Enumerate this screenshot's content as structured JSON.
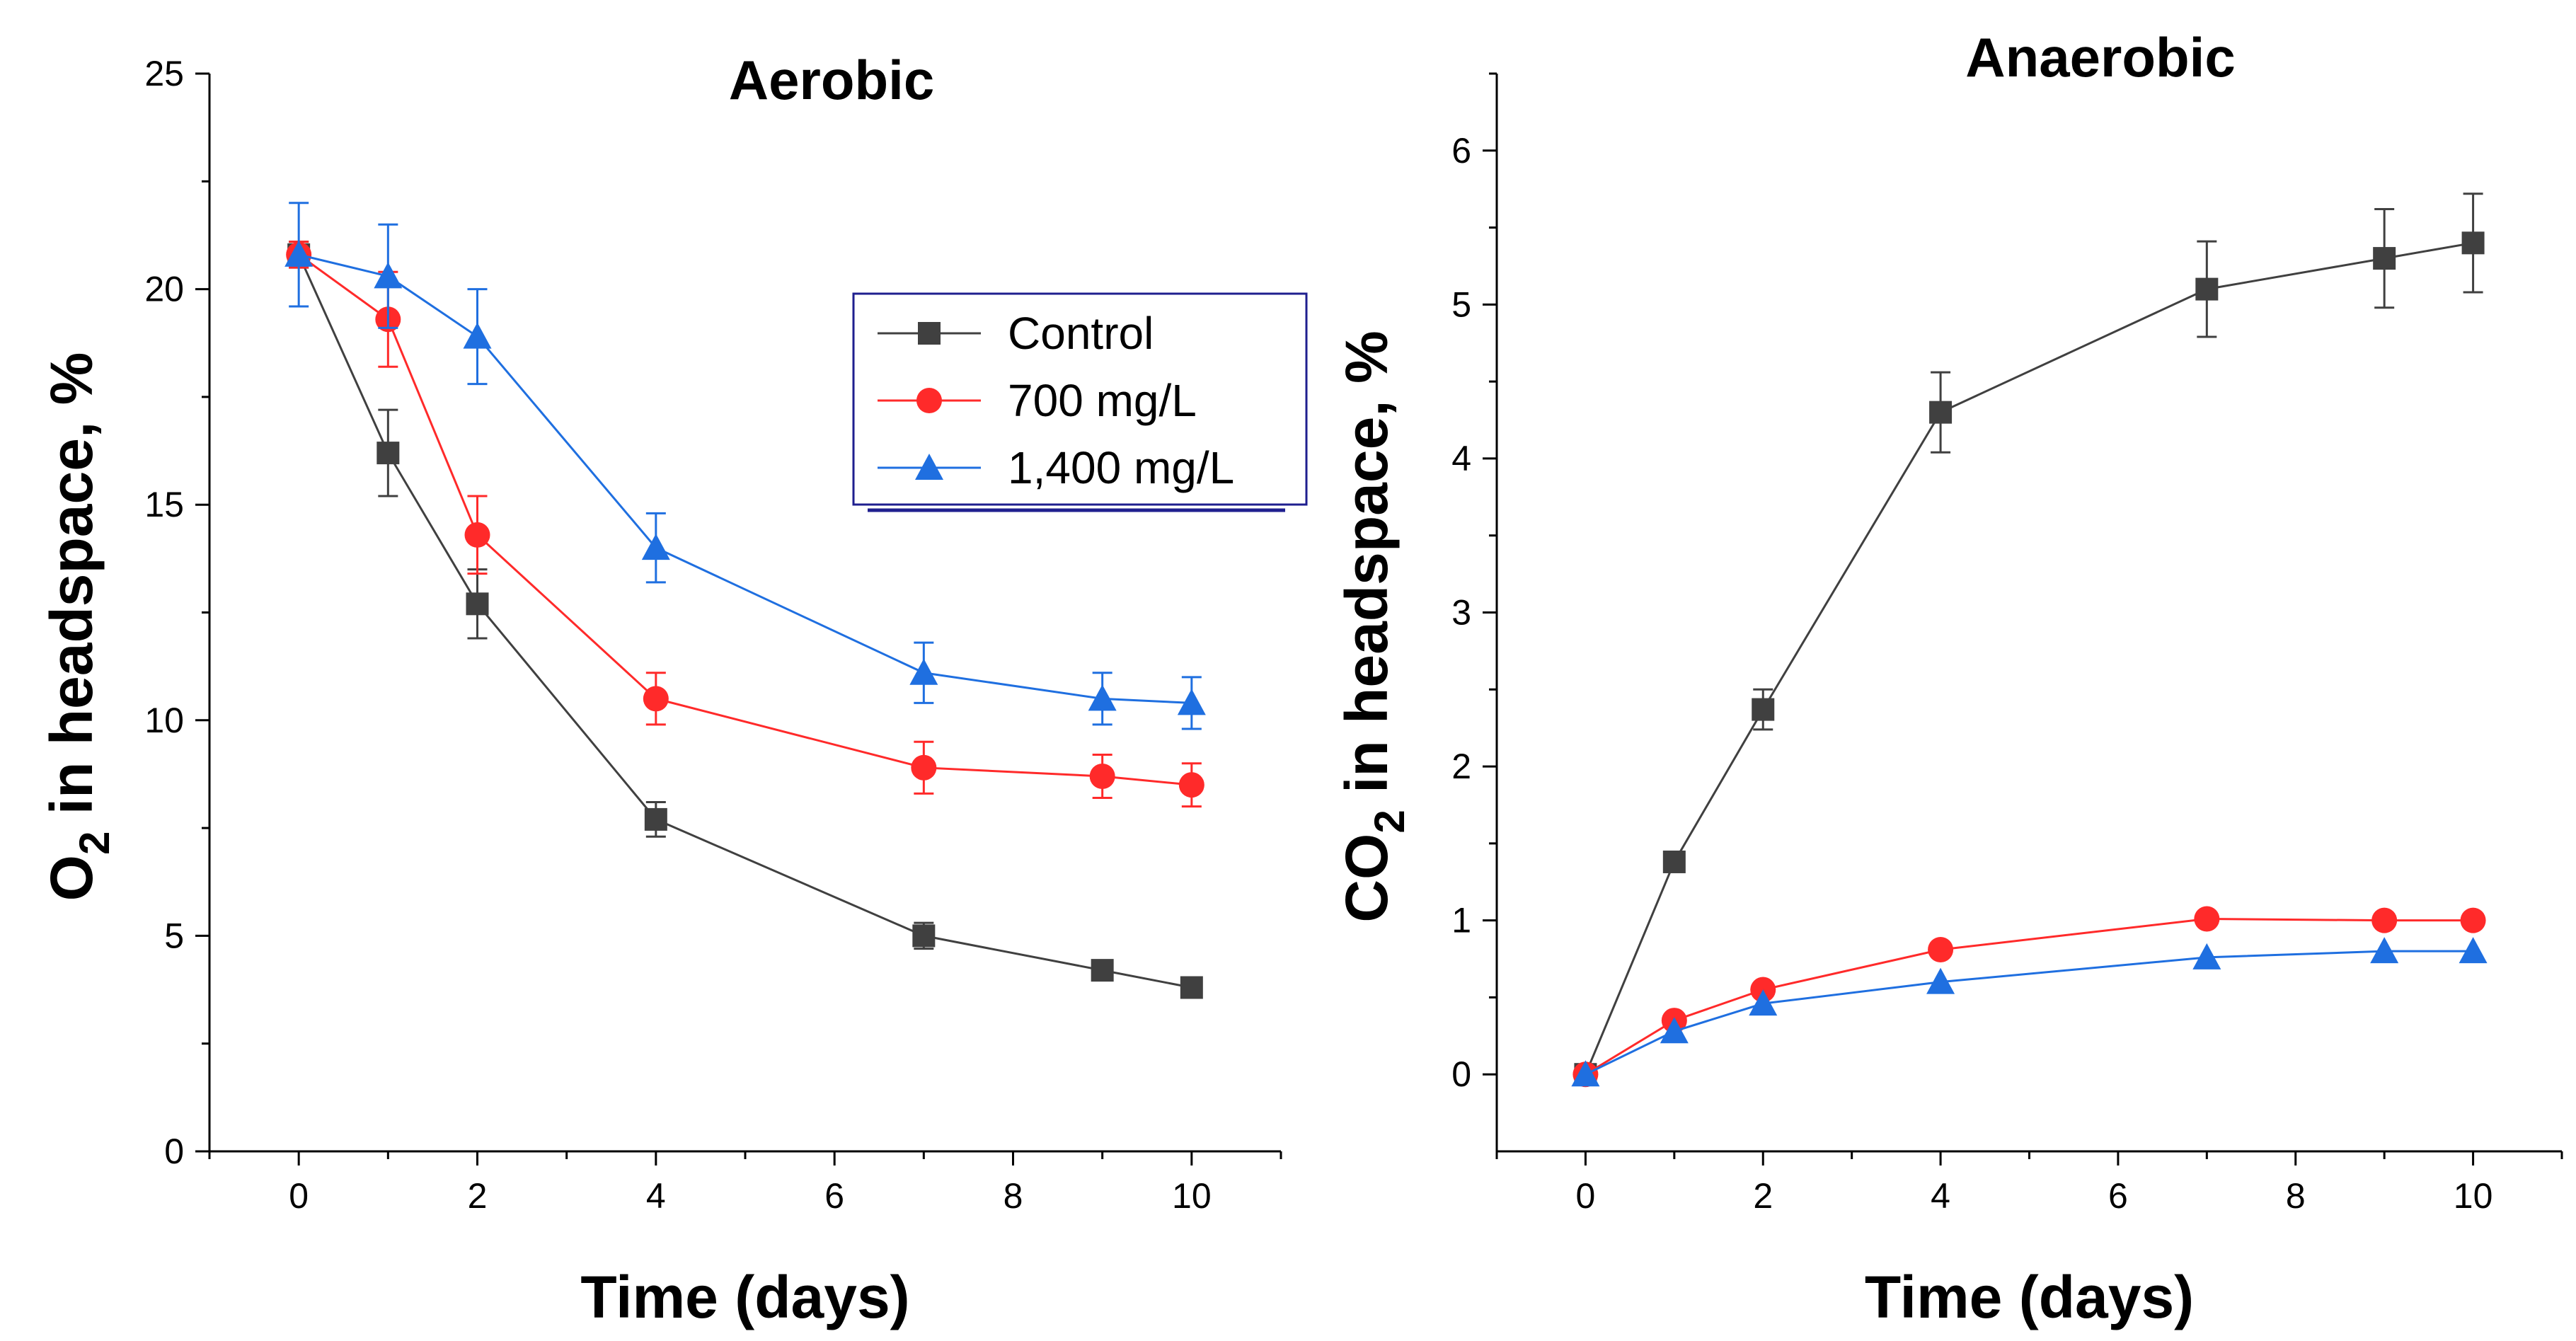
{
  "chart_data": [
    {
      "type": "line",
      "title": "Aerobic",
      "xlabel": "Time (days)",
      "ylabel": {
        "pre": "O",
        "sub": "2",
        "post": " in headspace, %"
      },
      "xlim": [
        -1,
        11
      ],
      "ylim": [
        0,
        25
      ],
      "xticks": [
        0,
        2,
        4,
        6,
        8,
        10
      ],
      "yticks": [
        0,
        5,
        10,
        15,
        20,
        25
      ],
      "grid": false,
      "legend_position": "top-right",
      "x": [
        0,
        1,
        2,
        4,
        7,
        9,
        10
      ],
      "series": [
        {
          "name": "Control",
          "color": "#404040",
          "marker": "square",
          "values": [
            20.8,
            16.2,
            12.7,
            7.7,
            5.0,
            4.2,
            3.8
          ],
          "errors": [
            0.3,
            1.0,
            0.8,
            0.4,
            0.3,
            0.2,
            0.2
          ]
        },
        {
          "name": "700 mg/L",
          "color": "#ff2a2a",
          "marker": "circle",
          "values": [
            20.8,
            19.3,
            14.3,
            10.5,
            8.9,
            8.7,
            8.5
          ],
          "errors": [
            0.3,
            1.1,
            0.9,
            0.6,
            0.6,
            0.5,
            0.5
          ]
        },
        {
          "name": "1,400 mg/L",
          "color": "#1f6fe0",
          "marker": "triangle",
          "values": [
            20.8,
            20.3,
            18.9,
            14.0,
            11.1,
            10.5,
            10.4
          ],
          "errors": [
            1.2,
            1.2,
            1.1,
            0.8,
            0.7,
            0.6,
            0.6
          ]
        }
      ]
    },
    {
      "type": "line",
      "title": "Anaerobic",
      "xlabel": "Time (days)",
      "ylabel": {
        "pre": "CO",
        "sub": "2",
        "post": " in headspace, %"
      },
      "xlim": [
        -1,
        11
      ],
      "ylim": [
        -0.5,
        6.5
      ],
      "xticks": [
        0,
        2,
        4,
        6,
        8,
        10
      ],
      "yticks": [
        0,
        1,
        2,
        3,
        4,
        5,
        6
      ],
      "grid": false,
      "x": [
        0,
        1,
        2,
        4,
        7,
        9,
        10
      ],
      "series": [
        {
          "name": "Control",
          "color": "#404040",
          "marker": "square",
          "values": [
            0.0,
            1.38,
            2.37,
            4.3,
            5.1,
            5.3,
            5.4
          ],
          "errors": [
            0.03,
            0.06,
            0.13,
            0.26,
            0.31,
            0.32,
            0.32
          ]
        },
        {
          "name": "700 mg/L",
          "color": "#ff2a2a",
          "marker": "circle",
          "values": [
            0.0,
            0.35,
            0.55,
            0.81,
            1.01,
            1.0,
            1.0
          ],
          "errors": [
            0,
            0,
            0,
            0,
            0,
            0,
            0
          ]
        },
        {
          "name": "1,400 mg/L",
          "color": "#1f6fe0",
          "marker": "triangle",
          "values": [
            0.0,
            0.28,
            0.46,
            0.6,
            0.76,
            0.8,
            0.8
          ],
          "errors": [
            0,
            0,
            0,
            0,
            0,
            0,
            0
          ]
        }
      ]
    }
  ]
}
